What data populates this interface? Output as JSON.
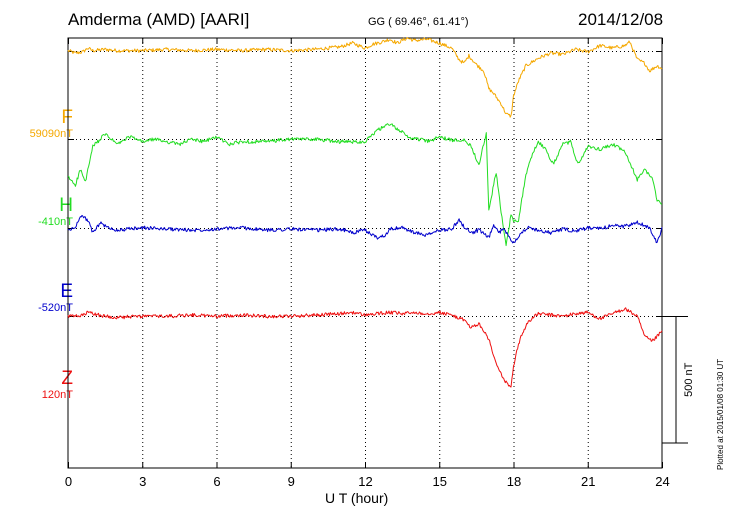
{
  "header": {
    "title": "Amderma (AMD)  [AARI]",
    "coords": "GG ( 69.46°,  61.41°)",
    "date": "2014/12/08"
  },
  "footer": {
    "plotted": "Plotted at 2015/01/08 01:30 UT"
  },
  "colors": {
    "F": "#f5a800",
    "H": "#22dd22",
    "E": "#0000cc",
    "Z": "#ee1111"
  },
  "chart_data": {
    "type": "line",
    "title": "Amderma (AMD)  [AARI]",
    "xlabel": "U T (hour)",
    "ylabel": "",
    "xlim": [
      0,
      24
    ],
    "xticks": [
      "0",
      "3",
      "6",
      "9",
      "12",
      "15",
      "18",
      "21",
      "24"
    ],
    "ylim_offset_nT": [
      -350,
      1350
    ],
    "scale_bar": {
      "value_nT": 500,
      "label": "500 nT"
    },
    "components": [
      {
        "name": "F",
        "base_label": "59090nT",
        "offset_nT": 1300
      },
      {
        "name": "H",
        "base_label": "-410nT",
        "offset_nT": 950
      },
      {
        "name": "E",
        "base_label": "-520nT",
        "offset_nT": 600
      },
      {
        "name": "Z",
        "base_label": "120nT",
        "offset_nT": 250
      }
    ],
    "series": [
      {
        "name": "F",
        "x": [
          0,
          0.3,
          0.6,
          0.8,
          1,
          1.5,
          2,
          3,
          4,
          5,
          6,
          7,
          8,
          9,
          10,
          11,
          11.5,
          12,
          12.3,
          12.7,
          13,
          13.3,
          13.7,
          14,
          14.5,
          15,
          15.5,
          15.8,
          16,
          16.2,
          16.5,
          16.8,
          17,
          17.2,
          17.5,
          17.7,
          17.9,
          18,
          18.2,
          18.5,
          19,
          19.5,
          20,
          20.5,
          21,
          21.5,
          22,
          22.5,
          22.7,
          23,
          23.3,
          23.5,
          23.8,
          24
        ],
        "values": [
          0,
          -10,
          -5,
          10,
          0,
          5,
          0,
          0,
          5,
          0,
          5,
          0,
          5,
          0,
          5,
          15,
          30,
          10,
          25,
          35,
          45,
          30,
          50,
          40,
          45,
          30,
          10,
          -35,
          -50,
          -20,
          -55,
          -80,
          -150,
          -170,
          -210,
          -250,
          -260,
          -180,
          -120,
          -60,
          -30,
          -10,
          -15,
          5,
          -5,
          20,
          10,
          20,
          35,
          -35,
          -50,
          -80,
          -60,
          -70
        ]
      },
      {
        "name": "H",
        "x": [
          0,
          0.3,
          0.5,
          0.7,
          1,
          1.5,
          2,
          2.5,
          3,
          3.5,
          4,
          4.5,
          5,
          5.5,
          6,
          6.5,
          7,
          7.5,
          8,
          9,
          10,
          11,
          12,
          12.3,
          12.6,
          13,
          13.4,
          13.8,
          14.2,
          14.6,
          15,
          15.5,
          16,
          16.3,
          16.6,
          16.9,
          17,
          17.1,
          17.3,
          17.5,
          17.7,
          17.9,
          18,
          18.2,
          18.5,
          18.8,
          19,
          19.3,
          19.6,
          20,
          20.3,
          20.6,
          21,
          21.5,
          22,
          22.5,
          23,
          23.3,
          23.6,
          23.8,
          24
        ],
        "values": [
          -150,
          -180,
          -120,
          -170,
          -30,
          20,
          -20,
          10,
          -10,
          0,
          -10,
          -20,
          0,
          -10,
          10,
          -20,
          -10,
          -10,
          -10,
          0,
          0,
          -10,
          -10,
          20,
          40,
          60,
          35,
          5,
          0,
          -10,
          10,
          -5,
          0,
          -30,
          -100,
          20,
          -280,
          -230,
          -130,
          -290,
          -420,
          -300,
          -320,
          -320,
          -140,
          -50,
          -10,
          -40,
          -100,
          -20,
          -10,
          -100,
          -30,
          -40,
          -20,
          -50,
          -160,
          -120,
          -150,
          -240,
          -260
        ]
      },
      {
        "name": "E",
        "x": [
          0,
          0.3,
          0.5,
          0.8,
          1,
          1.3,
          1.6,
          2,
          3,
          4,
          5,
          6,
          7,
          8,
          9,
          10,
          11,
          11.5,
          12,
          12.5,
          12.8,
          13,
          13.5,
          14,
          14.5,
          15,
          15.5,
          15.8,
          16,
          16.3,
          16.6,
          17,
          17.2,
          17.4,
          17.6,
          17.8,
          18,
          18.3,
          18.6,
          19,
          19.5,
          20,
          20.5,
          21,
          21.5,
          22,
          22.5,
          23,
          23.5,
          23.8,
          24
        ],
        "values": [
          -10,
          0,
          50,
          30,
          -20,
          20,
          0,
          -10,
          0,
          -5,
          -10,
          -5,
          0,
          -10,
          -5,
          -10,
          -5,
          -20,
          -10,
          -40,
          -30,
          -5,
          0,
          -20,
          -30,
          -10,
          -5,
          30,
          5,
          -20,
          -10,
          -40,
          10,
          -20,
          -5,
          -30,
          -60,
          -20,
          0,
          -10,
          -20,
          -5,
          -15,
          0,
          -5,
          10,
          5,
          20,
          0,
          -60,
          0
        ]
      },
      {
        "name": "Z",
        "x": [
          0,
          0.5,
          0.8,
          1,
          1.5,
          2,
          3,
          4,
          5,
          6,
          7,
          8,
          9,
          10,
          11,
          11.5,
          12,
          12.5,
          13,
          13.5,
          14,
          14.5,
          15,
          15.5,
          16,
          16.3,
          16.6,
          17,
          17.2,
          17.4,
          17.6,
          17.8,
          17.9,
          18,
          18.1,
          18.3,
          18.6,
          19,
          19.5,
          20,
          20.5,
          21,
          21.5,
          22,
          22.5,
          23,
          23.3,
          23.6,
          24
        ],
        "values": [
          0,
          0,
          15,
          10,
          0,
          -5,
          0,
          0,
          5,
          0,
          5,
          0,
          0,
          5,
          10,
          15,
          5,
          10,
          15,
          10,
          15,
          10,
          15,
          5,
          -15,
          -45,
          -30,
          -90,
          -160,
          -210,
          -250,
          -270,
          -280,
          -200,
          -150,
          -80,
          -20,
          10,
          5,
          0,
          10,
          15,
          -10,
          10,
          30,
          0,
          -80,
          -100,
          -60
        ]
      }
    ]
  }
}
